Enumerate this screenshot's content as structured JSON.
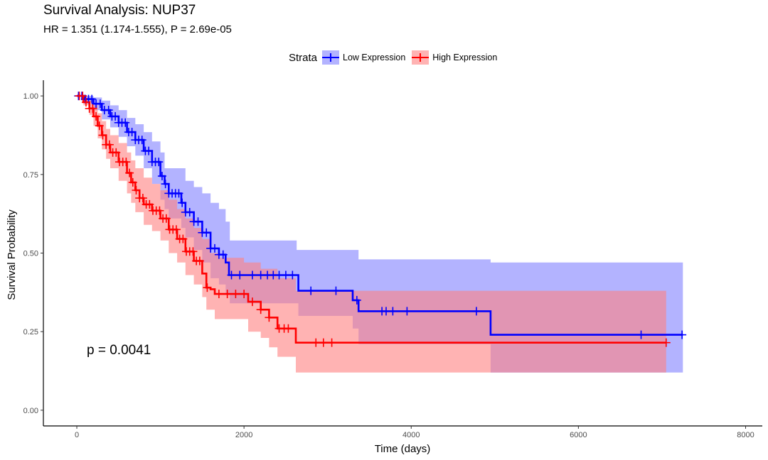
{
  "chart_data": {
    "type": "line",
    "title": "Survival Analysis: NUP37",
    "subtitle": "HR = 1.351 (1.174-1.555), P = 2.69e-05",
    "xlabel": "Time (days)",
    "ylabel": "Survival Probability",
    "xlim": [
      -400,
      8200
    ],
    "ylim": [
      -0.05,
      1.05
    ],
    "x_ticks": [
      0,
      2000,
      4000,
      6000,
      8000
    ],
    "x_tick_labels": [
      "0",
      "2000",
      "4000",
      "6000",
      "8000"
    ],
    "y_ticks": [
      0,
      0.25,
      0.5,
      0.75,
      1.0
    ],
    "y_tick_labels": [
      "0.00",
      "0.25",
      "0.50",
      "0.75",
      "1.00"
    ],
    "grid": false,
    "legend": {
      "title": "Strata",
      "placement": "top"
    },
    "annotation": "p = 0.0041",
    "series": [
      {
        "name": "Low Expression",
        "color": "#0000FF",
        "fill": "#8080FF",
        "steps": [
          [
            0,
            1.0
          ],
          [
            100,
            0.99
          ],
          [
            200,
            0.975
          ],
          [
            300,
            0.955
          ],
          [
            400,
            0.935
          ],
          [
            500,
            0.915
          ],
          [
            600,
            0.885
          ],
          [
            700,
            0.86
          ],
          [
            800,
            0.825
          ],
          [
            900,
            0.79
          ],
          [
            1000,
            0.745
          ],
          [
            1050,
            0.72
          ],
          [
            1100,
            0.69
          ],
          [
            1250,
            0.66
          ],
          [
            1300,
            0.63
          ],
          [
            1400,
            0.6
          ],
          [
            1500,
            0.565
          ],
          [
            1600,
            0.515
          ],
          [
            1700,
            0.495
          ],
          [
            1780,
            0.47
          ],
          [
            1820,
            0.43
          ],
          [
            2650,
            0.38
          ],
          [
            3300,
            0.35
          ],
          [
            3370,
            0.315
          ],
          [
            4950,
            0.24
          ],
          [
            7250,
            0.24
          ]
        ],
        "upper": [
          [
            0,
            1.0
          ],
          [
            100,
            1.0
          ],
          [
            200,
            0.995
          ],
          [
            300,
            0.985
          ],
          [
            400,
            0.97
          ],
          [
            500,
            0.955
          ],
          [
            600,
            0.93
          ],
          [
            700,
            0.91
          ],
          [
            800,
            0.885
          ],
          [
            900,
            0.855
          ],
          [
            1000,
            0.82
          ],
          [
            1050,
            0.77
          ],
          [
            1300,
            0.73
          ],
          [
            1400,
            0.71
          ],
          [
            1500,
            0.69
          ],
          [
            1600,
            0.66
          ],
          [
            1700,
            0.64
          ],
          [
            1780,
            0.6
          ],
          [
            1830,
            0.54
          ],
          [
            2600,
            0.54
          ],
          [
            2630,
            0.51
          ],
          [
            3300,
            0.51
          ],
          [
            3370,
            0.48
          ],
          [
            4950,
            0.47
          ],
          [
            7250,
            0.47
          ]
        ],
        "lower": [
          [
            0,
            1.0
          ],
          [
            100,
            0.98
          ],
          [
            200,
            0.955
          ],
          [
            300,
            0.925
          ],
          [
            400,
            0.9
          ],
          [
            500,
            0.87
          ],
          [
            600,
            0.84
          ],
          [
            700,
            0.81
          ],
          [
            800,
            0.77
          ],
          [
            900,
            0.72
          ],
          [
            1000,
            0.67
          ],
          [
            1050,
            0.64
          ],
          [
            1100,
            0.61
          ],
          [
            1250,
            0.58
          ],
          [
            1300,
            0.55
          ],
          [
            1400,
            0.51
          ],
          [
            1500,
            0.47
          ],
          [
            1600,
            0.42
          ],
          [
            1700,
            0.4
          ],
          [
            1780,
            0.37
          ],
          [
            1830,
            0.34
          ],
          [
            2650,
            0.3
          ],
          [
            3300,
            0.26
          ],
          [
            3370,
            0.21
          ],
          [
            4950,
            0.12
          ],
          [
            7250,
            0.12
          ]
        ],
        "censor_x": [
          20,
          60,
          100,
          140,
          180,
          230,
          280,
          330,
          380,
          420,
          460,
          500,
          540,
          580,
          620,
          660,
          700,
          740,
          780,
          820,
          860,
          900,
          940,
          980,
          1020,
          1060,
          1100,
          1140,
          1180,
          1220,
          1260,
          1300,
          1350,
          1400,
          1450,
          1500,
          1550,
          1600,
          1650,
          1700,
          1750,
          1850,
          1950,
          2100,
          2200,
          2280,
          2350,
          2420,
          2500,
          2580,
          2800,
          3100,
          3350,
          3650,
          3700,
          3780,
          3950,
          4780,
          6750,
          7240
        ]
      },
      {
        "name": "High Expression",
        "color": "#FF0000",
        "fill": "#FF8080",
        "steps": [
          [
            0,
            1.0
          ],
          [
            80,
            0.98
          ],
          [
            150,
            0.96
          ],
          [
            200,
            0.935
          ],
          [
            250,
            0.905
          ],
          [
            300,
            0.875
          ],
          [
            350,
            0.845
          ],
          [
            400,
            0.82
          ],
          [
            500,
            0.79
          ],
          [
            600,
            0.755
          ],
          [
            650,
            0.725
          ],
          [
            700,
            0.7
          ],
          [
            750,
            0.675
          ],
          [
            800,
            0.655
          ],
          [
            900,
            0.635
          ],
          [
            1000,
            0.61
          ],
          [
            1100,
            0.575
          ],
          [
            1200,
            0.545
          ],
          [
            1300,
            0.505
          ],
          [
            1400,
            0.475
          ],
          [
            1500,
            0.435
          ],
          [
            1550,
            0.39
          ],
          [
            1600,
            0.385
          ],
          [
            1650,
            0.37
          ],
          [
            2050,
            0.345
          ],
          [
            2200,
            0.32
          ],
          [
            2300,
            0.295
          ],
          [
            2400,
            0.26
          ],
          [
            2550,
            0.26
          ],
          [
            2620,
            0.215
          ],
          [
            7050,
            0.215
          ]
        ],
        "upper": [
          [
            0,
            1.0
          ],
          [
            80,
            0.995
          ],
          [
            150,
            0.985
          ],
          [
            200,
            0.97
          ],
          [
            250,
            0.945
          ],
          [
            300,
            0.92
          ],
          [
            350,
            0.895
          ],
          [
            400,
            0.875
          ],
          [
            500,
            0.85
          ],
          [
            600,
            0.82
          ],
          [
            650,
            0.795
          ],
          [
            700,
            0.77
          ],
          [
            800,
            0.74
          ],
          [
            900,
            0.72
          ],
          [
            1000,
            0.7
          ],
          [
            1100,
            0.67
          ],
          [
            1200,
            0.64
          ],
          [
            1300,
            0.61
          ],
          [
            1400,
            0.58
          ],
          [
            1500,
            0.545
          ],
          [
            1600,
            0.5
          ],
          [
            1700,
            0.485
          ],
          [
            2000,
            0.47
          ],
          [
            2200,
            0.45
          ],
          [
            2400,
            0.42
          ],
          [
            2620,
            0.38
          ],
          [
            7050,
            0.38
          ]
        ],
        "lower": [
          [
            0,
            1.0
          ],
          [
            80,
            0.97
          ],
          [
            150,
            0.94
          ],
          [
            200,
            0.905
          ],
          [
            250,
            0.865
          ],
          [
            300,
            0.83
          ],
          [
            350,
            0.8
          ],
          [
            400,
            0.77
          ],
          [
            500,
            0.73
          ],
          [
            600,
            0.69
          ],
          [
            650,
            0.66
          ],
          [
            700,
            0.63
          ],
          [
            800,
            0.59
          ],
          [
            900,
            0.57
          ],
          [
            1000,
            0.54
          ],
          [
            1100,
            0.5
          ],
          [
            1200,
            0.47
          ],
          [
            1300,
            0.43
          ],
          [
            1400,
            0.4
          ],
          [
            1500,
            0.36
          ],
          [
            1550,
            0.32
          ],
          [
            1650,
            0.29
          ],
          [
            2050,
            0.25
          ],
          [
            2200,
            0.23
          ],
          [
            2300,
            0.2
          ],
          [
            2400,
            0.17
          ],
          [
            2620,
            0.12
          ],
          [
            7050,
            0.12
          ]
        ],
        "censor_x": [
          30,
          70,
          110,
          150,
          190,
          230,
          270,
          310,
          350,
          390,
          430,
          470,
          510,
          550,
          590,
          630,
          670,
          710,
          750,
          790,
          830,
          870,
          910,
          950,
          990,
          1030,
          1070,
          1110,
          1150,
          1190,
          1230,
          1270,
          1310,
          1350,
          1390,
          1430,
          1470,
          1560,
          1700,
          1800,
          1900,
          2000,
          2100,
          2200,
          2300,
          2420,
          2480,
          2530,
          2860,
          2950,
          3050,
          7050
        ]
      }
    ]
  }
}
